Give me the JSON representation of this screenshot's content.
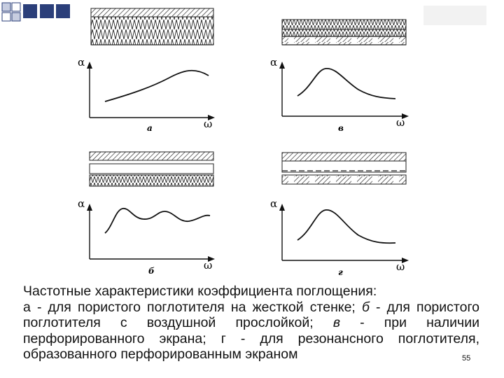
{
  "panels": [
    {
      "letter": "а",
      "y_axis": "α",
      "x_axis": "ω",
      "construction": "porous-absorber-on-rigid-wall",
      "curve_shape": "broad-rising"
    },
    {
      "letter": "в",
      "y_axis": "α",
      "x_axis": "ω",
      "construction": "perforated-screen",
      "curve_shape": "resonant-peak"
    },
    {
      "letter": "б",
      "y_axis": "α",
      "x_axis": "ω",
      "construction": "porous-absorber-with-air-gap",
      "curve_shape": "oscillating"
    },
    {
      "letter": "г",
      "y_axis": "α",
      "x_axis": "ω",
      "construction": "resonant-absorber-perforated-screen",
      "curve_shape": "resonant-peak"
    }
  ],
  "caption": {
    "line1": "Частотные характеристики коэффициента поглощения:",
    "a_letter": "а",
    "a_text": " - для пористого поглотителя на жесткой стенке; ",
    "b_letter": "б",
    "b_text": " - для пористого поглотителя с воздушной прослойкой; ",
    "v_letter": "в",
    "v_text": " - при наличии перфорированного экрана; ",
    "g_letter": "г",
    "g_text": " - для резонансного поглотителя, образованного перфорированным экраном"
  },
  "slide_number": "55",
  "colors": {
    "ink": "#111111",
    "deco_blue": "#2b3f7a",
    "deco_light": "#c7cde0"
  }
}
